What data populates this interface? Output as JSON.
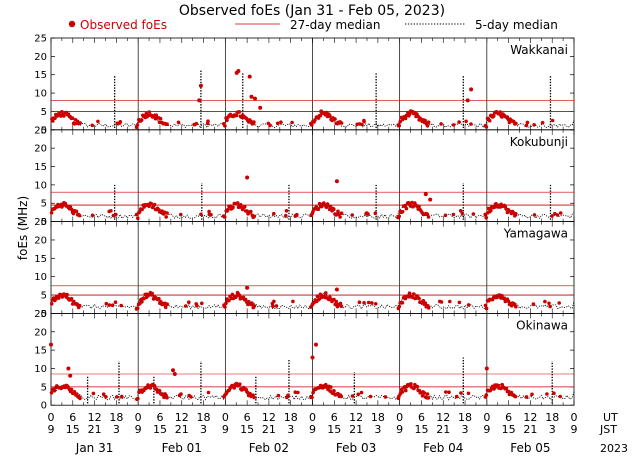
{
  "chart_data": {
    "type": "scatter",
    "title": "Observed foEs (Jan 31 - Feb 05, 2023)",
    "ylabel": "foEs (MHz)",
    "ylim": [
      0,
      25
    ],
    "yticks": [
      0,
      5,
      10,
      15,
      20,
      25
    ],
    "legend": {
      "observed": "Observed foEs",
      "median27": "27-day median",
      "median5": "5-day median"
    },
    "x_axis": {
      "ut_label": "UT",
      "jst_label": "JST",
      "year_label": "2023",
      "ut_ticks": [
        "0",
        "6",
        "12",
        "18",
        "0",
        "6",
        "12",
        "18",
        "0",
        "6",
        "12",
        "18",
        "0",
        "6",
        "12",
        "18",
        "0",
        "6",
        "12",
        "18",
        "0",
        "6",
        "12",
        "18",
        "0"
      ],
      "jst_ticks": [
        "9",
        "15",
        "21",
        "3",
        "9",
        "15",
        "21",
        "3",
        "9",
        "15",
        "21",
        "3",
        "9",
        "15",
        "21",
        "3",
        "9",
        "15",
        "21",
        "3",
        "9",
        "15",
        "21",
        "3",
        "9"
      ],
      "day_labels": [
        "Jan 31",
        "Feb 01",
        "Feb 02",
        "Feb 03",
        "Feb 04",
        "Feb 05"
      ]
    },
    "colors": {
      "observed": "#cc0000",
      "median27": "#cc0000",
      "median": "#000000"
    },
    "stations": [
      {
        "name": "Wakkanai",
        "median27": 5.0,
        "median27_upper": 8.0,
        "spikes": [
          [
            0.73,
            15
          ],
          [
            1.72,
            16.5
          ],
          [
            2.2,
            15.5
          ],
          [
            3.73,
            15.5
          ],
          [
            4.73,
            15
          ],
          [
            5.73,
            15
          ]
        ],
        "events": [
          [
            1.72,
            12
          ],
          [
            1.7,
            8
          ],
          [
            2.13,
            15.5
          ],
          [
            2.15,
            16
          ],
          [
            2.28,
            14.5
          ],
          [
            2.3,
            9
          ],
          [
            2.34,
            8.5
          ],
          [
            2.4,
            6
          ],
          [
            3.1,
            5
          ],
          [
            4.78,
            8
          ],
          [
            4.82,
            11
          ]
        ]
      },
      {
        "name": "Kokubunji",
        "median27": 4.5,
        "median27_upper": 8.0,
        "spikes": [
          [
            0.73,
            10
          ],
          [
            1.73,
            10.5
          ],
          [
            2.73,
            10
          ],
          [
            3.73,
            10
          ],
          [
            4.73,
            10.5
          ],
          [
            5.73,
            10
          ]
        ],
        "events": [
          [
            2.25,
            12
          ],
          [
            3.28,
            11
          ],
          [
            4.3,
            7.5
          ],
          [
            4.35,
            6
          ]
        ]
      },
      {
        "name": "Yamagawa",
        "median27": 5.0,
        "median27_upper": 7.5,
        "spikes": [],
        "events": [
          [
            2.25,
            7
          ],
          [
            3.28,
            6.5
          ]
        ]
      },
      {
        "name": "Okinawa",
        "median27": 5.0,
        "median27_upper": 8.5,
        "spikes": [
          [
            0.42,
            8
          ],
          [
            0.78,
            12
          ],
          [
            1.18,
            8
          ],
          [
            1.72,
            12
          ],
          [
            2.35,
            8
          ],
          [
            2.73,
            12.5
          ],
          [
            3.48,
            9
          ],
          [
            4.73,
            13
          ],
          [
            5.75,
            12
          ]
        ],
        "events": [
          [
            0.0,
            16.5
          ],
          [
            0.2,
            10
          ],
          [
            0.22,
            8
          ],
          [
            1.4,
            9.5
          ],
          [
            1.42,
            8.5
          ],
          [
            3.0,
            13
          ],
          [
            3.04,
            16.5
          ],
          [
            5.0,
            10
          ]
        ]
      }
    ]
  }
}
